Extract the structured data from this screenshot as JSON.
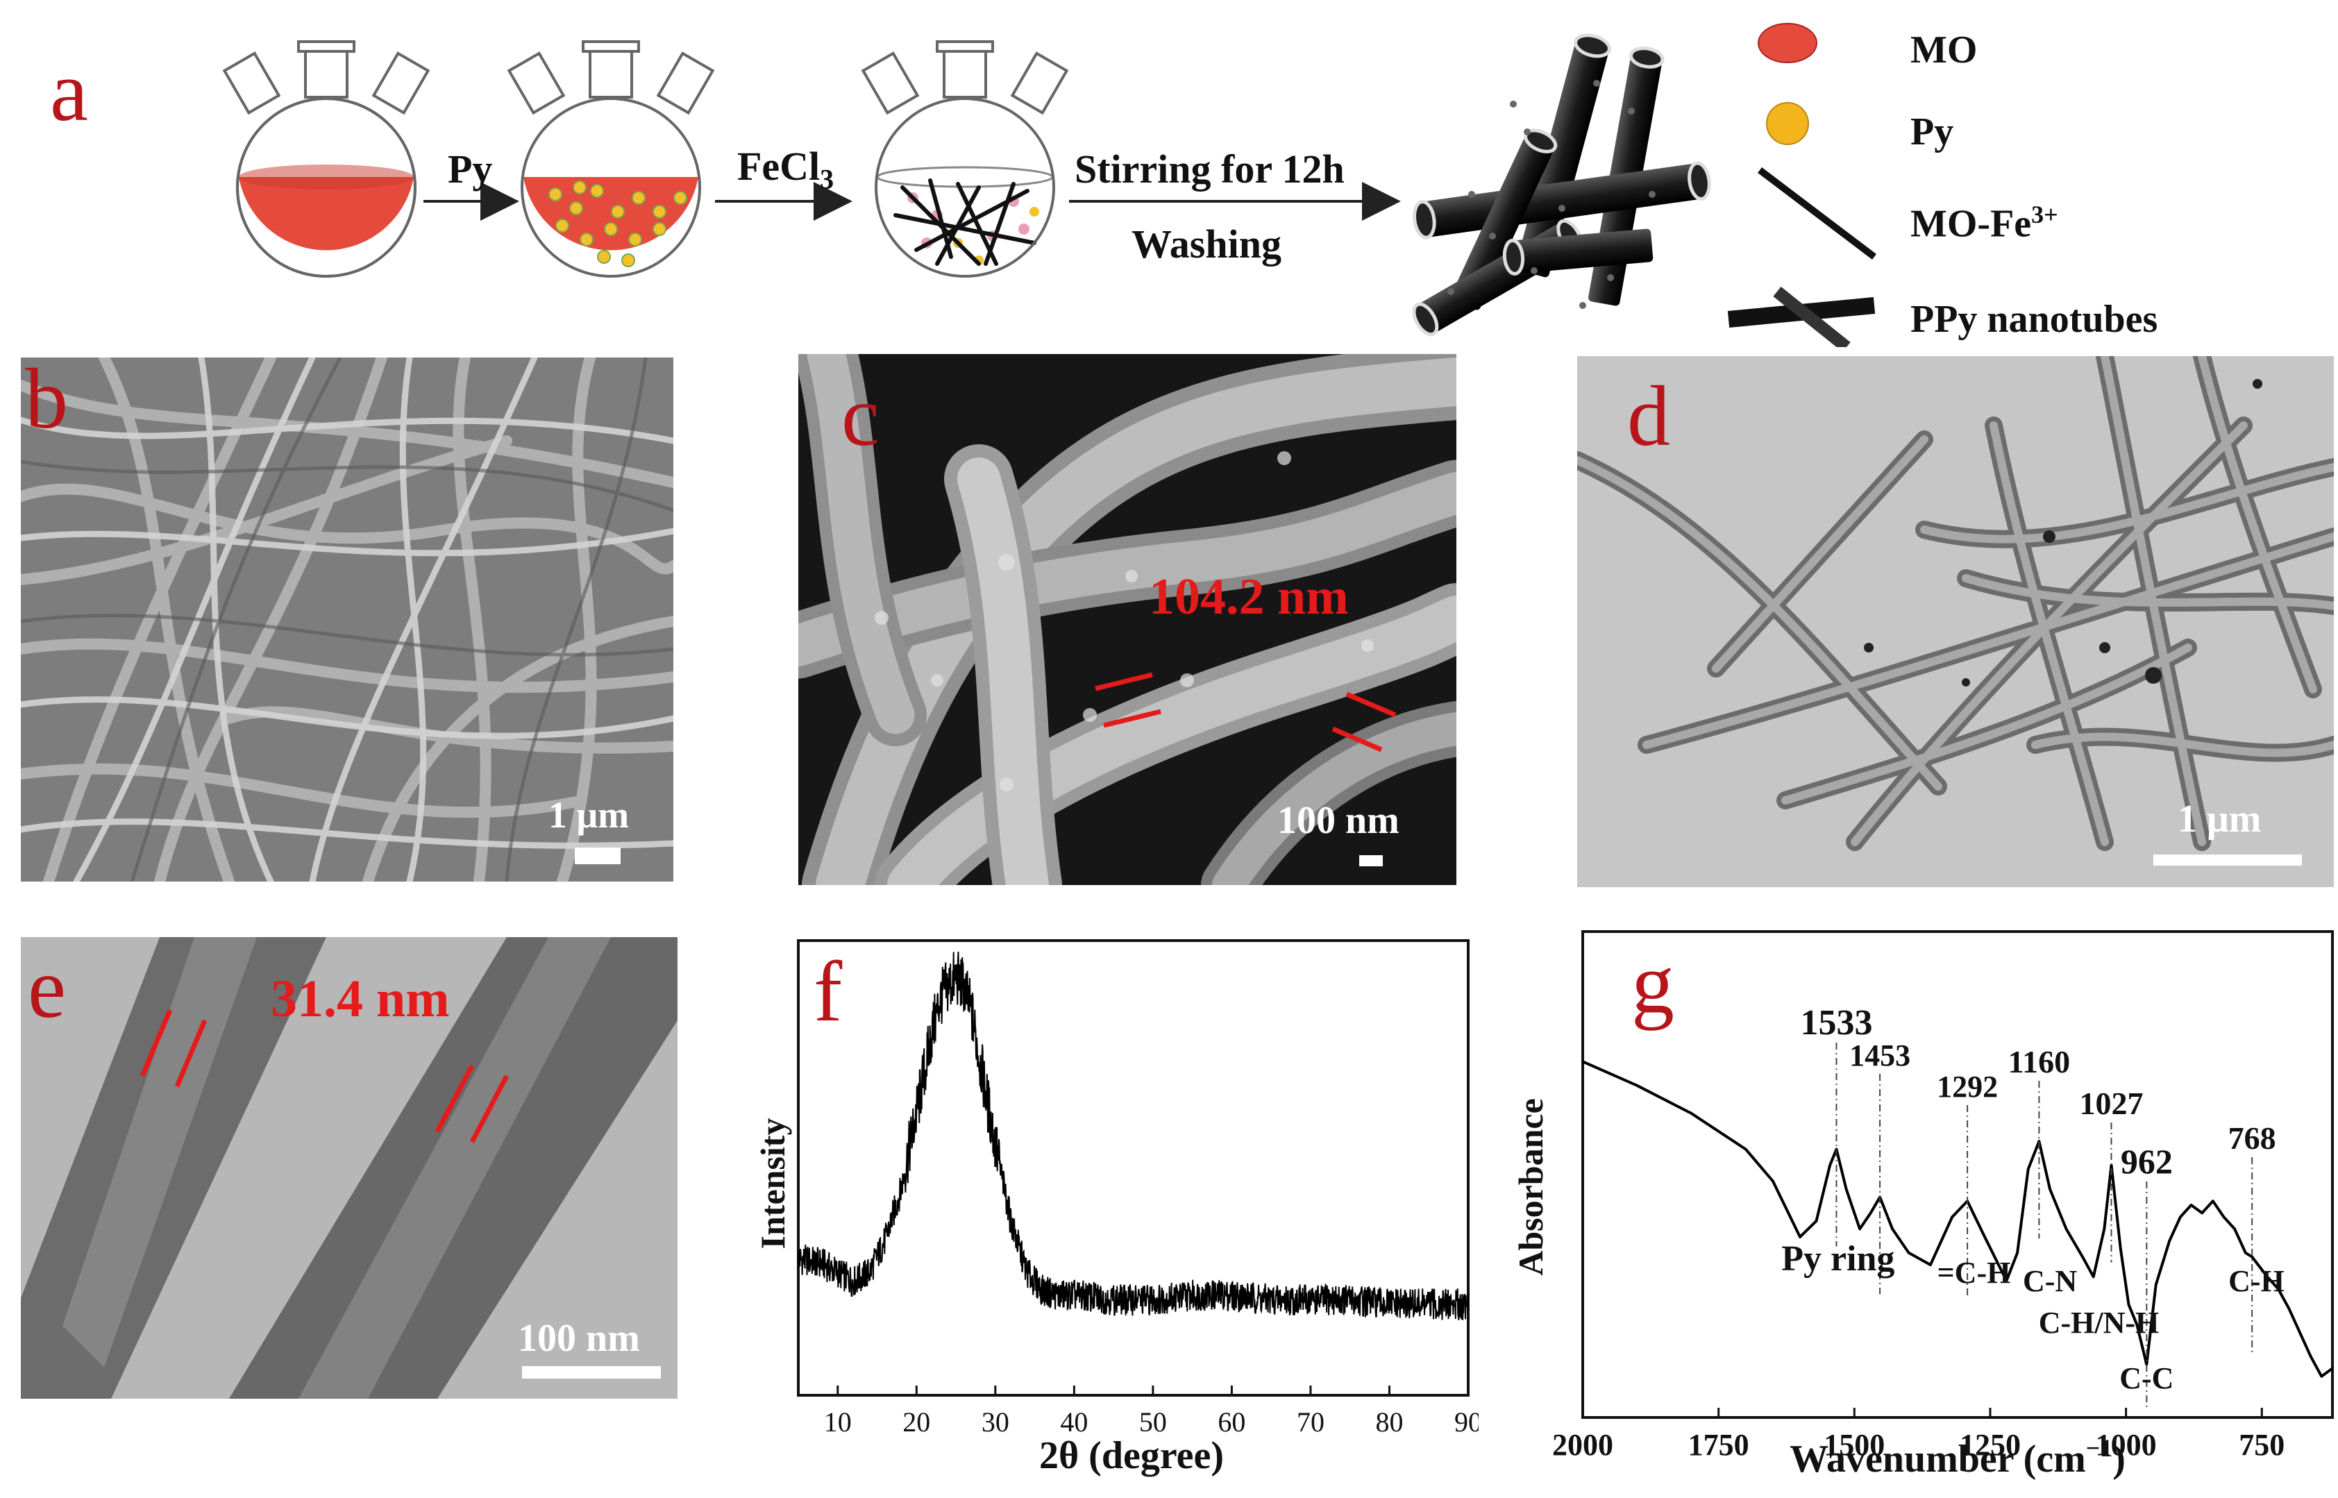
{
  "panels": {
    "a": {
      "letter": "a",
      "step_py": "Py",
      "step_fecl3_main": "FeCl",
      "step_fecl3_sub": "3",
      "step_stirring": "Stirring for 12h",
      "step_washing": "Washing",
      "legend": {
        "mo": "MO",
        "py": "Py",
        "mo_fe_main": "MO-Fe",
        "mo_fe_sup": "3+",
        "ppy": "PPy nanotubes"
      },
      "colors": {
        "mo_red": "#e54b3c",
        "py_yellow": "#f3b51b",
        "tube_black": "#1a1a1a"
      }
    },
    "b": {
      "letter": "b",
      "scale": "1 μm"
    },
    "c": {
      "letter": "c",
      "scale": "100 nm",
      "measure": "104.2 nm"
    },
    "d": {
      "letter": "d",
      "scale": "1 μm"
    },
    "e": {
      "letter": "e",
      "scale": "100 nm",
      "measure": "31.4 nm"
    },
    "f": {
      "letter": "f",
      "ylabel": "Intensity",
      "xlabel": "2θ (degree)"
    },
    "g": {
      "letter": "g",
      "ylabel": "Absorbance",
      "xlabel_main": "Wavenumber (cm",
      "xlabel_sup": "−1",
      "xlabel_end": ")",
      "peak_labels": [
        "1533",
        "1453",
        "1292",
        "1160",
        "1027",
        "962",
        "768"
      ],
      "assignments": [
        "Py ring",
        "=C-H",
        "C-N",
        "C-H/N-H",
        "C-C",
        "C-H"
      ]
    }
  },
  "chart_data": [
    {
      "type": "line",
      "panel": "f",
      "title": "",
      "xlabel": "2θ (degree)",
      "ylabel": "Intensity",
      "xlim": [
        5,
        90
      ],
      "xticks": [
        10,
        20,
        30,
        40,
        50,
        60,
        70,
        80,
        90
      ],
      "y_ticks_shown": false,
      "grid": false,
      "series": [
        {
          "x": [
            5,
            8,
            10,
            12,
            14,
            16,
            18,
            20,
            22,
            23,
            24,
            25,
            26,
            27,
            28,
            30,
            32,
            34,
            36,
            38,
            40,
            45,
            50,
            55,
            60,
            65,
            70,
            75,
            80,
            85,
            90
          ],
          "y": [
            0.3,
            0.29,
            0.27,
            0.25,
            0.27,
            0.34,
            0.45,
            0.62,
            0.8,
            0.87,
            0.9,
            0.92,
            0.9,
            0.84,
            0.74,
            0.55,
            0.38,
            0.27,
            0.23,
            0.22,
            0.22,
            0.21,
            0.21,
            0.22,
            0.22,
            0.21,
            0.21,
            0.21,
            0.2,
            0.2,
            0.2
          ]
        }
      ]
    },
    {
      "type": "line",
      "panel": "g",
      "title": "",
      "xlabel": "Wavenumber (cm−1)",
      "ylabel": "Absorbance",
      "xlim": [
        2000,
        620
      ],
      "x_reversed": true,
      "xticks": [
        2000,
        1750,
        1500,
        1250,
        1000,
        750
      ],
      "y_ticks_shown": false,
      "grid": false,
      "series": [
        {
          "x": [
            2000,
            1900,
            1800,
            1700,
            1650,
            1600,
            1570,
            1545,
            1533,
            1515,
            1490,
            1470,
            1453,
            1430,
            1400,
            1360,
            1320,
            1292,
            1260,
            1220,
            1200,
            1180,
            1160,
            1140,
            1110,
            1080,
            1060,
            1040,
            1027,
            1010,
            995,
            980,
            962,
            945,
            920,
            900,
            880,
            860,
            840,
            820,
            800,
            780,
            768,
            740,
            720,
            700,
            680,
            660,
            640,
            620
          ],
          "y": [
            0.82,
            0.76,
            0.69,
            0.6,
            0.52,
            0.38,
            0.42,
            0.56,
            0.6,
            0.5,
            0.4,
            0.44,
            0.48,
            0.4,
            0.34,
            0.31,
            0.43,
            0.47,
            0.38,
            0.27,
            0.34,
            0.55,
            0.62,
            0.5,
            0.4,
            0.33,
            0.28,
            0.4,
            0.56,
            0.35,
            0.21,
            0.16,
            0.06,
            0.26,
            0.37,
            0.43,
            0.46,
            0.44,
            0.47,
            0.43,
            0.4,
            0.34,
            0.33,
            0.28,
            0.25,
            0.2,
            0.14,
            0.08,
            0.03,
            0.05
          ]
        }
      ],
      "annotations": [
        {
          "x": 1533,
          "label": "1533"
        },
        {
          "x": 1453,
          "label": "1453"
        },
        {
          "x": 1292,
          "label": "1292"
        },
        {
          "x": 1160,
          "label": "1160"
        },
        {
          "x": 1027,
          "label": "1027"
        },
        {
          "x": 962,
          "label": "962"
        },
        {
          "x": 768,
          "label": "768"
        }
      ]
    }
  ]
}
